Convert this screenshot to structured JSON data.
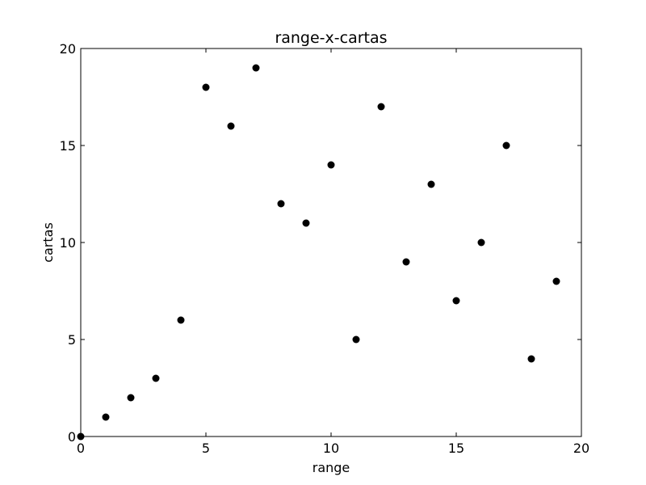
{
  "chart_data": {
    "type": "scatter",
    "title": "range-x-cartas",
    "xlabel": "range",
    "ylabel": "cartas",
    "xlim": [
      0,
      20
    ],
    "ylim": [
      0,
      20
    ],
    "xticks": [
      "0",
      "5",
      "10",
      "15",
      "20"
    ],
    "yticks": [
      "0",
      "5",
      "10",
      "15",
      "20"
    ],
    "grid": false,
    "series": [
      {
        "x": [
          0,
          1,
          2,
          3,
          4,
          5,
          6,
          7,
          8,
          9,
          10,
          11,
          12,
          13,
          14,
          15,
          16,
          17,
          18,
          19
        ],
        "y": [
          0,
          1,
          2,
          3,
          6,
          18,
          16,
          19,
          12,
          11,
          14,
          5,
          17,
          9,
          13,
          7,
          10,
          15,
          4,
          8
        ],
        "color": "#000000"
      }
    ]
  }
}
